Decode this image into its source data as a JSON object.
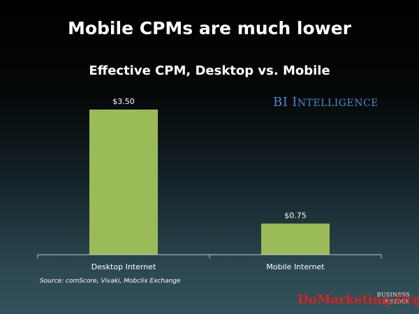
{
  "slide": {
    "title": "Mobile CPMs are much lower",
    "source": "Source: comScore, Vivaki, Mobclix Exchange"
  },
  "brand": {
    "prefix": "BI",
    "initial": "I",
    "rest": "NTELLIGENCE",
    "color": "#4f87cc"
  },
  "logo": {
    "line1": "BUSINESS",
    "line2": "INSIDER"
  },
  "watermark": {
    "text": "DoMarketing.Org",
    "color": "#e0241c"
  },
  "chart_data": {
    "type": "bar",
    "title": "Effective CPM, Desktop vs. Mobile",
    "categories": [
      "Desktop Internet",
      "Mobile Internet"
    ],
    "values": [
      3.5,
      0.75
    ],
    "data_labels": [
      "$3.50",
      "$0.75"
    ],
    "xlabel": "",
    "ylabel": "",
    "ylim": [
      0,
      3.5
    ],
    "grid": false,
    "legend": "none",
    "bar_color": "#9bbb59"
  }
}
